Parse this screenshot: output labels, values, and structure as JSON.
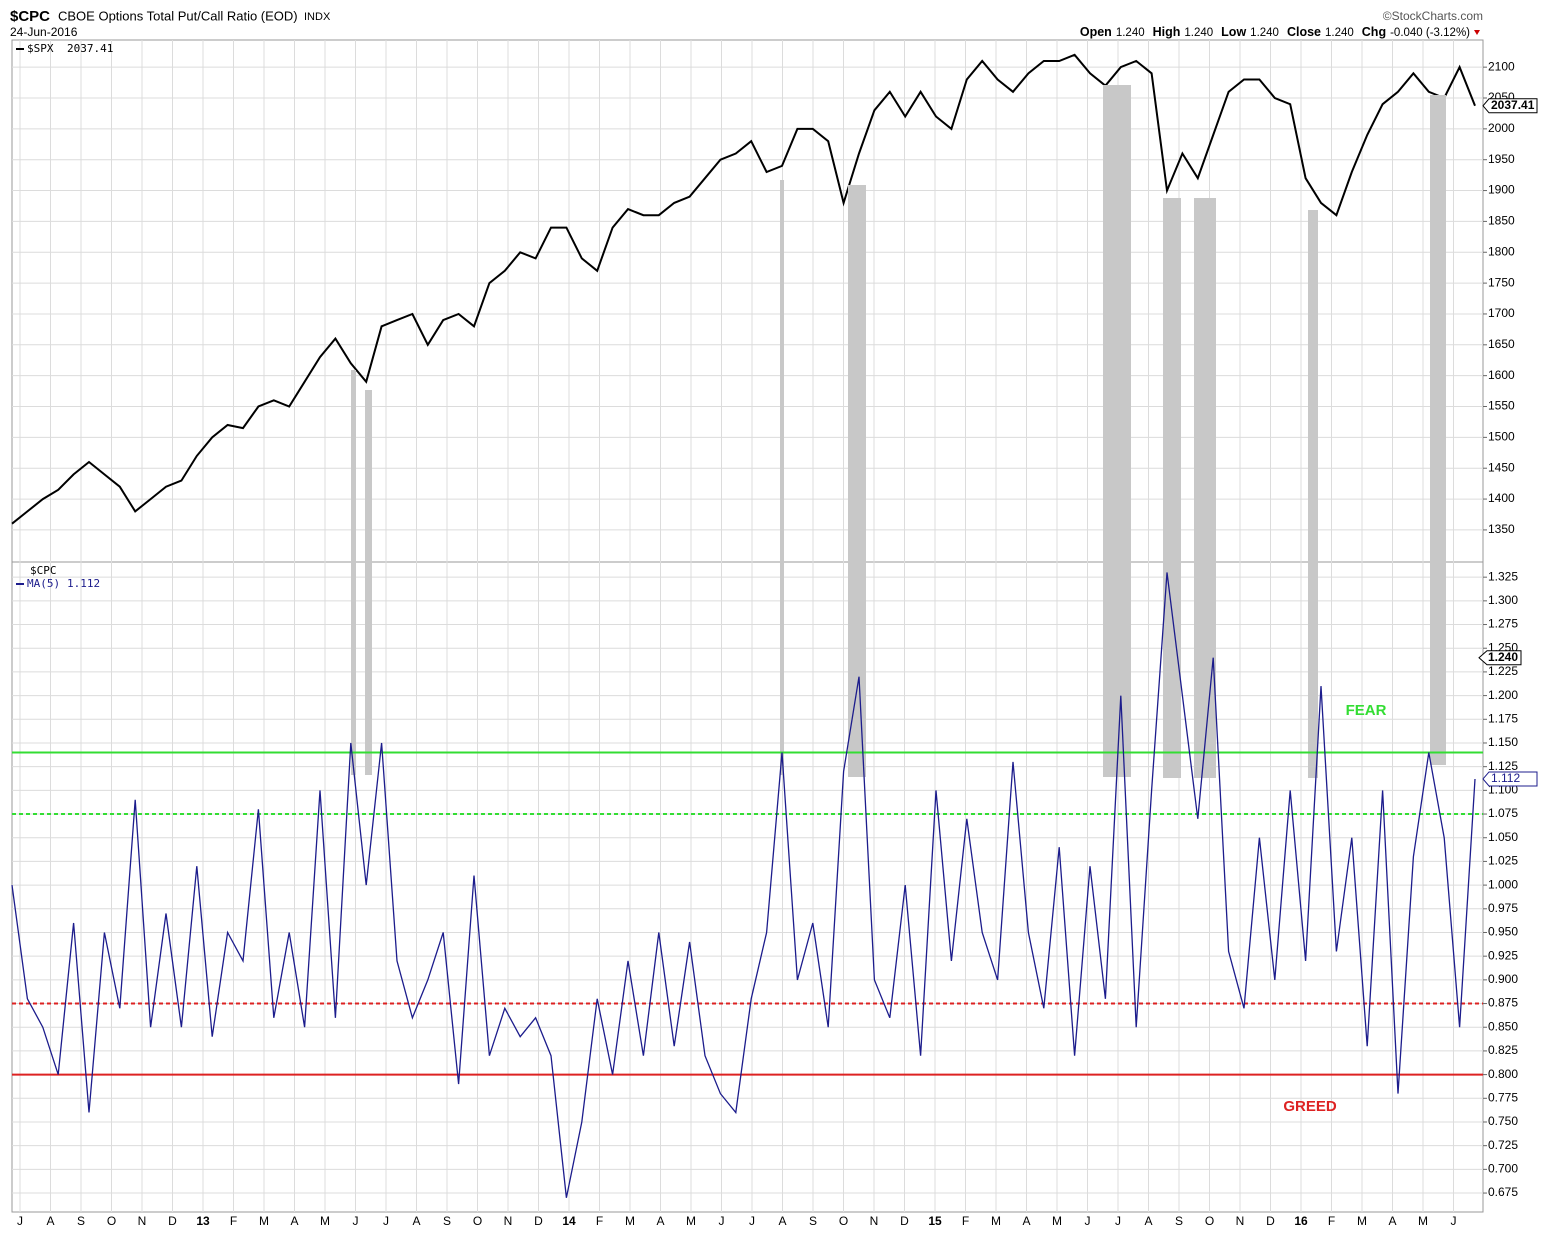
{
  "header": {
    "symbol": "$CPC",
    "name": "CBOE Options Total Put/Call Ratio (EOD)",
    "exchange": "INDX",
    "date": "24-Jun-2016",
    "credit": "©StockCharts.com",
    "quote": [
      {
        "label": "Open",
        "value": "1.240"
      },
      {
        "label": "High",
        "value": "1.240"
      },
      {
        "label": "Low",
        "value": "1.240"
      },
      {
        "label": "Close",
        "value": "1.240"
      },
      {
        "label": "Chg",
        "value": "-0.040 (-3.12%)"
      }
    ]
  },
  "chart_data": [
    {
      "type": "line",
      "ylim": [
        1298,
        2144
      ],
      "yticks": [
        1350,
        1400,
        1450,
        1500,
        1550,
        1600,
        1650,
        1700,
        1750,
        1800,
        1850,
        1900,
        1950,
        2000,
        2050,
        2100
      ],
      "last_label": "2037.41",
      "series": [
        {
          "name": "$SPX",
          "color": "#000000",
          "values": [
            1360,
            1380,
            1400,
            1415,
            1440,
            1460,
            1440,
            1420,
            1380,
            1400,
            1420,
            1430,
            1470,
            1500,
            1520,
            1515,
            1550,
            1560,
            1550,
            1590,
            1630,
            1660,
            1620,
            1590,
            1680,
            1690,
            1700,
            1650,
            1690,
            1700,
            1680,
            1750,
            1770,
            1800,
            1790,
            1840,
            1840,
            1790,
            1770,
            1840,
            1870,
            1860,
            1860,
            1880,
            1890,
            1920,
            1950,
            1960,
            1980,
            1930,
            1940,
            2000,
            2000,
            1980,
            1880,
            1960,
            2030,
            2060,
            2020,
            2060,
            2020,
            2000,
            2080,
            2110,
            2080,
            2060,
            2090,
            2110,
            2110,
            2120,
            2090,
            2070,
            2100,
            2110,
            2090,
            1900,
            1960,
            1920,
            1990,
            2060,
            2080,
            2080,
            2050,
            2040,
            1920,
            1880,
            1860,
            1930,
            1990,
            2040,
            2060,
            2090,
            2060,
            2050,
            2100,
            2037.41
          ]
        }
      ]
    },
    {
      "type": "line",
      "title": "$CPC",
      "ylim": [
        0.655,
        1.341
      ],
      "yticks": [
        0.675,
        {
          "value": 0.7,
          "label": "0.700"
        },
        0.725,
        {
          "value": 0.75,
          "label": "0.750"
        },
        0.775,
        {
          "value": 0.8,
          "label": "0.800"
        },
        0.825,
        {
          "value": 0.85,
          "label": "0.850"
        },
        0.875,
        {
          "value": 0.9,
          "label": "0.900"
        },
        0.925,
        {
          "value": 0.95,
          "label": "0.950"
        },
        0.975,
        {
          "value": 1,
          "label": "1.000"
        },
        1.025,
        {
          "value": 1.05,
          "label": "1.050"
        },
        1.075,
        {
          "value": 1.1,
          "label": "1.100"
        },
        1.125,
        {
          "value": 1.15,
          "label": "1.150"
        },
        1.175,
        {
          "value": 1.2,
          "label": "1.200"
        },
        1.225,
        {
          "value": 1.25,
          "label": "1.250"
        },
        1.275,
        {
          "value": 1.3,
          "label": "1.300"
        },
        1.325
      ],
      "close_label": "1.240",
      "close_value": 1.24,
      "xticks": [
        "J",
        "A",
        "S",
        "O",
        "N",
        "D",
        "13",
        "F",
        "M",
        "A",
        "M",
        "J",
        "J",
        "A",
        "S",
        "O",
        "N",
        "D",
        "14",
        "F",
        "M",
        "A",
        "M",
        "J",
        "J",
        "A",
        "S",
        "O",
        "N",
        "D",
        "15",
        "F",
        "M",
        "A",
        "M",
        "J",
        "J",
        "A",
        "S",
        "O",
        "N",
        "D",
        "16",
        "F",
        "M",
        "A",
        "M",
        "J"
      ],
      "reference_lines": [
        {
          "value": 1.14,
          "color": "#33dd33",
          "dashed": false
        },
        {
          "value": 1.075,
          "color": "#33dd33",
          "dashed": true
        },
        {
          "value": 0.875,
          "color": "#dd2222",
          "dashed": true
        },
        {
          "value": 0.8,
          "color": "#dd2222",
          "dashed": false
        }
      ],
      "annotations": [
        {
          "text": "FEAR",
          "color": "#33dd33"
        },
        {
          "text": "GREED",
          "color": "#dd2222"
        }
      ],
      "last_label": "1.112",
      "series": [
        {
          "name": "MA(5)",
          "color": "#1c1c8c",
          "values": [
            1.0,
            0.88,
            0.85,
            0.8,
            0.96,
            0.76,
            0.95,
            0.87,
            1.09,
            0.85,
            0.97,
            0.85,
            1.02,
            0.84,
            0.95,
            0.92,
            1.08,
            0.86,
            0.95,
            0.85,
            1.1,
            0.86,
            1.15,
            1.0,
            1.15,
            0.92,
            0.86,
            0.9,
            0.95,
            0.79,
            1.01,
            0.82,
            0.87,
            0.84,
            0.86,
            0.82,
            0.67,
            0.75,
            0.88,
            0.8,
            0.92,
            0.82,
            0.95,
            0.83,
            0.94,
            0.82,
            0.78,
            0.76,
            0.88,
            0.95,
            1.14,
            0.9,
            0.96,
            0.85,
            1.12,
            1.22,
            0.9,
            0.86,
            1.0,
            0.82,
            1.1,
            0.92,
            1.07,
            0.95,
            0.9,
            1.13,
            0.95,
            0.87,
            1.04,
            0.82,
            1.02,
            0.88,
            1.2,
            0.85,
            1.1,
            1.33,
            1.2,
            1.07,
            1.24,
            0.93,
            0.87,
            1.05,
            0.9,
            1.1,
            0.92,
            1.21,
            0.93,
            1.05,
            0.83,
            1.1,
            0.78,
            1.03,
            1.14,
            1.05,
            0.85,
            1.112
          ]
        }
      ]
    }
  ]
}
